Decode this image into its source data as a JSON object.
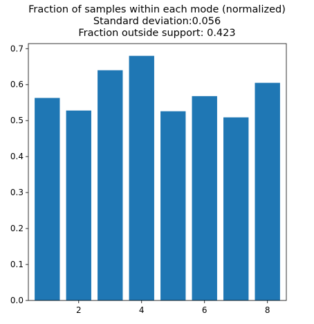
{
  "chart_data": {
    "type": "bar",
    "title_lines": [
      "Fraction of samples within each mode (normalized)",
      "Standard deviation:0.056",
      "Fraction outside support: 0.423"
    ],
    "x": [
      1,
      2,
      3,
      4,
      5,
      6,
      7,
      8
    ],
    "values": [
      0.563,
      0.528,
      0.64,
      0.68,
      0.526,
      0.568,
      0.509,
      0.605
    ],
    "xlim": [
      0.4,
      8.6
    ],
    "ylim": [
      0,
      0.714
    ],
    "xticks": [
      2,
      4,
      6,
      8
    ],
    "yticks": [
      0.0,
      0.1,
      0.2,
      0.3,
      0.4,
      0.5,
      0.6,
      0.7
    ],
    "xtick_labels": [
      "2",
      "4",
      "6",
      "8"
    ],
    "ytick_labels": [
      "0.0",
      "0.1",
      "0.2",
      "0.3",
      "0.4",
      "0.5",
      "0.6",
      "0.7"
    ],
    "bar_width": 0.8,
    "grid": false,
    "bar_color": "#1f77b4"
  }
}
